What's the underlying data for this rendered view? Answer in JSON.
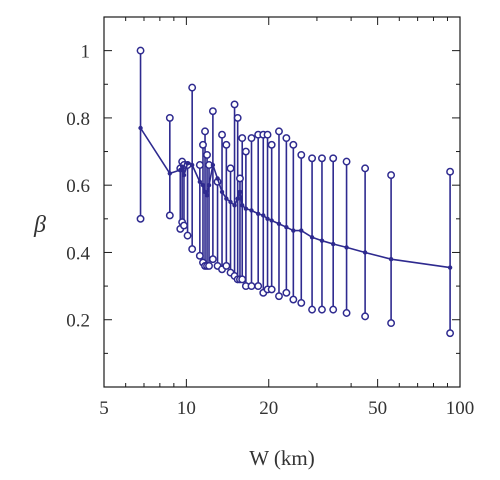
{
  "chart_data": {
    "type": "line",
    "title": "",
    "xlabel": "W (km)",
    "ylabel": "β",
    "xscale": "log",
    "xlim": [
      5,
      100
    ],
    "ylim": [
      0,
      1.1
    ],
    "xticks": [
      5,
      10,
      20,
      50,
      100
    ],
    "xtick_labels": [
      "5",
      "10",
      "20",
      "50",
      "100"
    ],
    "yticks": [
      0.2,
      0.4,
      0.6,
      0.8,
      1.0
    ],
    "ytick_labels": [
      "0.2",
      "0.4",
      "0.6",
      "0.8",
      "1"
    ],
    "grid": false,
    "color": "#2e2a8f",
    "series": [
      {
        "x": [
          6.8,
          8.7,
          9.5,
          9.65,
          9.8,
          10.1,
          10.5,
          11.2,
          11.5,
          11.7,
          11.9,
          12.1,
          12.5,
          13.0,
          13.5,
          14.0,
          14.5,
          15.0,
          15.4,
          15.7,
          16.0,
          16.5,
          17.3,
          18.3,
          19.1,
          19.8,
          20.5,
          21.8,
          23.2,
          24.6,
          26.3,
          28.8,
          31.3,
          34.4,
          38.5,
          45.0,
          56.0,
          92.0
        ],
        "y": [
          0.77,
          0.635,
          0.645,
          0.655,
          0.63,
          0.665,
          0.66,
          0.61,
          0.6,
          0.58,
          0.57,
          0.6,
          0.66,
          0.62,
          0.58,
          0.56,
          0.55,
          0.54,
          0.56,
          0.58,
          0.54,
          0.53,
          0.525,
          0.515,
          0.51,
          0.5,
          0.495,
          0.485,
          0.475,
          0.465,
          0.465,
          0.445,
          0.435,
          0.425,
          0.415,
          0.4,
          0.38,
          0.355
        ],
        "low": [
          0.5,
          0.51,
          0.47,
          0.49,
          0.48,
          0.45,
          0.41,
          0.39,
          0.37,
          0.36,
          0.36,
          0.36,
          0.38,
          0.36,
          0.35,
          0.36,
          0.34,
          0.33,
          0.32,
          0.32,
          0.32,
          0.3,
          0.3,
          0.3,
          0.28,
          0.29,
          0.29,
          0.27,
          0.28,
          0.26,
          0.25,
          0.23,
          0.23,
          0.23,
          0.22,
          0.21,
          0.19,
          0.16
        ],
        "high": [
          1.0,
          0.8,
          0.65,
          0.67,
          0.66,
          0.66,
          0.89,
          0.66,
          0.72,
          0.76,
          0.69,
          0.66,
          0.82,
          0.61,
          0.75,
          0.72,
          0.65,
          0.84,
          0.8,
          0.62,
          0.74,
          0.7,
          0.74,
          0.75,
          0.75,
          0.75,
          0.72,
          0.76,
          0.74,
          0.72,
          0.69,
          0.68,
          0.68,
          0.68,
          0.67,
          0.65,
          0.63,
          0.64
        ]
      }
    ]
  }
}
